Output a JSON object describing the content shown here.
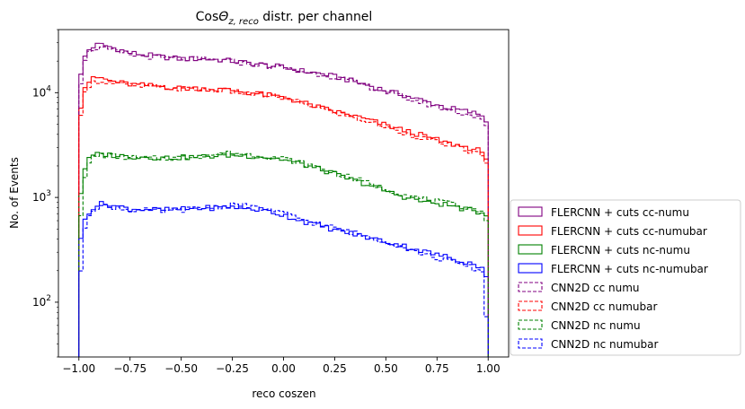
{
  "chart_data": {
    "type": "line",
    "title": "Cos",
    "title_theta": "Θ",
    "title_sub": "z, reco",
    "title_rest": " distr. per channel",
    "xlabel": "reco coszen",
    "ylabel": "No. of Events",
    "xlim": [
      -1.1,
      1.1
    ],
    "ylim": [
      30,
      40000
    ],
    "yscale": "log",
    "x_ticks": [
      -1.0,
      -0.75,
      -0.5,
      -0.25,
      0.0,
      0.25,
      0.5,
      0.75,
      1.0
    ],
    "x_tick_labels": [
      "−1.00",
      "−0.75",
      "−0.50",
      "−0.25",
      "0.00",
      "0.25",
      "0.50",
      "0.75",
      "1.00"
    ],
    "y_ticks": [
      100,
      1000,
      10000
    ],
    "y_tick_base": "10",
    "y_tick_exps": [
      "2",
      "3",
      "4"
    ],
    "legend_position": "outside right, lower",
    "x_knots": [
      -1.0,
      -0.995,
      -0.98,
      -0.96,
      -0.93,
      -0.9,
      -0.85,
      -0.75,
      -0.6,
      -0.5,
      -0.4,
      -0.3,
      -0.25,
      -0.2,
      -0.1,
      0.0,
      0.1,
      0.2,
      0.3,
      0.4,
      0.5,
      0.6,
      0.7,
      0.8,
      0.9,
      0.96,
      0.98,
      0.995,
      1.0
    ],
    "series": [
      {
        "name": "FLERCNN + cuts cc-numu",
        "color": "#800080",
        "dash": false,
        "values": [
          30,
          13000,
          20000,
          25000,
          27500,
          29000,
          27500,
          24000,
          22000,
          21000,
          21000,
          20500,
          20000,
          19500,
          18500,
          17500,
          16000,
          15000,
          13500,
          12000,
          10500,
          9300,
          8200,
          7200,
          6600,
          6200,
          5800,
          5000,
          30
        ]
      },
      {
        "name": "FLERCNN + cuts cc-numubar",
        "color": "#ff0000",
        "dash": false,
        "values": [
          30,
          6000,
          10000,
          12500,
          13500,
          14000,
          13000,
          12000,
          11500,
          11000,
          11000,
          10700,
          10500,
          10200,
          9600,
          9000,
          8000,
          7000,
          6300,
          5600,
          4900,
          4300,
          3800,
          3300,
          3000,
          2800,
          2600,
          2200,
          30
        ]
      },
      {
        "name": "FLERCNN + cuts nc-numu",
        "color": "#008000",
        "dash": false,
        "values": [
          30,
          900,
          1600,
          2200,
          2500,
          2600,
          2550,
          2450,
          2400,
          2400,
          2450,
          2500,
          2550,
          2500,
          2450,
          2300,
          2050,
          1800,
          1550,
          1350,
          1150,
          1000,
          900,
          850,
          760,
          720,
          700,
          650,
          30
        ]
      },
      {
        "name": "FLERCNN + cuts nc-numubar",
        "color": "#0000ff",
        "dash": false,
        "values": [
          30,
          350,
          550,
          700,
          800,
          870,
          850,
          780,
          760,
          770,
          790,
          800,
          820,
          790,
          760,
          680,
          590,
          520,
          470,
          420,
          380,
          340,
          300,
          270,
          240,
          220,
          210,
          160,
          30
        ]
      },
      {
        "name": "CNN2D cc numu",
        "color": "#800080",
        "dash": true,
        "values": [
          30,
          10000,
          18000,
          23000,
          26000,
          27000,
          25500,
          23000,
          21500,
          21000,
          20800,
          20300,
          19800,
          19200,
          18200,
          17200,
          15800,
          14800,
          13300,
          11700,
          10200,
          8900,
          7800,
          6900,
          6200,
          5800,
          5400,
          4600,
          30
        ]
      },
      {
        "name": "CNN2D cc numubar",
        "color": "#ff0000",
        "dash": true,
        "values": [
          30,
          5000,
          9000,
          11500,
          12500,
          13000,
          12500,
          11700,
          11200,
          10900,
          10800,
          10500,
          10300,
          10000,
          9500,
          8900,
          7900,
          6900,
          6100,
          5400,
          4700,
          4100,
          3600,
          3200,
          2800,
          2600,
          2400,
          2000,
          30
        ]
      },
      {
        "name": "CNN2D nc numu",
        "color": "#008000",
        "dash": true,
        "values": [
          30,
          500,
          1200,
          2000,
          2400,
          2550,
          2500,
          2400,
          2350,
          2400,
          2500,
          2600,
          2650,
          2600,
          2500,
          2350,
          2100,
          1850,
          1600,
          1400,
          1200,
          1050,
          950,
          880,
          800,
          760,
          720,
          550,
          30
        ]
      },
      {
        "name": "CNN2D nc numubar",
        "color": "#0000ff",
        "dash": true,
        "values": [
          30,
          140,
          400,
          650,
          780,
          830,
          820,
          760,
          740,
          760,
          790,
          820,
          860,
          830,
          780,
          700,
          610,
          540,
          480,
          430,
          380,
          330,
          280,
          250,
          220,
          200,
          190,
          45,
          30
        ]
      }
    ]
  }
}
